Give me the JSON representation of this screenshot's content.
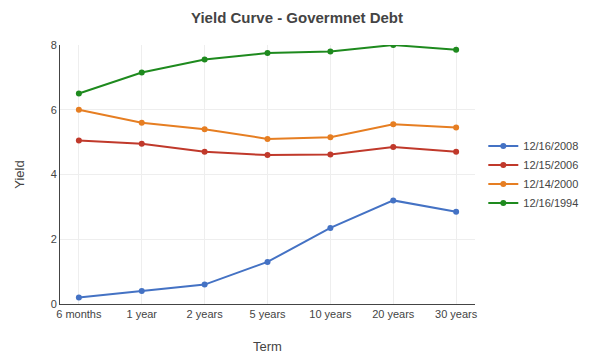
{
  "chart_data": {
    "type": "line",
    "title": "Yield Curve - Govermnet Debt",
    "x_label": "Term",
    "y_label": "Yield",
    "categories": [
      "6 months",
      "1 year",
      "2 years",
      "5 years",
      "10 years",
      "20 years",
      "30 years"
    ],
    "series": [
      {
        "name": "12/16/2008",
        "color": "#4472C4",
        "values": [
          0.2,
          0.4,
          0.6,
          1.3,
          2.35,
          3.2,
          2.85
        ]
      },
      {
        "name": "12/15/2006",
        "color": "#C0392B",
        "values": [
          5.05,
          4.95,
          4.7,
          4.6,
          4.62,
          4.85,
          4.7
        ]
      },
      {
        "name": "12/14/2000",
        "color": "#E67E22",
        "values": [
          6.0,
          5.6,
          5.4,
          5.1,
          5.15,
          5.55,
          5.45
        ]
      },
      {
        "name": "12/16/1994",
        "color": "#1E8A1E",
        "values": [
          6.5,
          7.15,
          7.55,
          7.75,
          7.8,
          8.0,
          7.85
        ]
      }
    ],
    "ylim": [
      0,
      8
    ],
    "yticks": [
      0,
      2,
      4,
      6,
      8
    ],
    "grid": true,
    "legend": "right",
    "marker": "circle"
  }
}
